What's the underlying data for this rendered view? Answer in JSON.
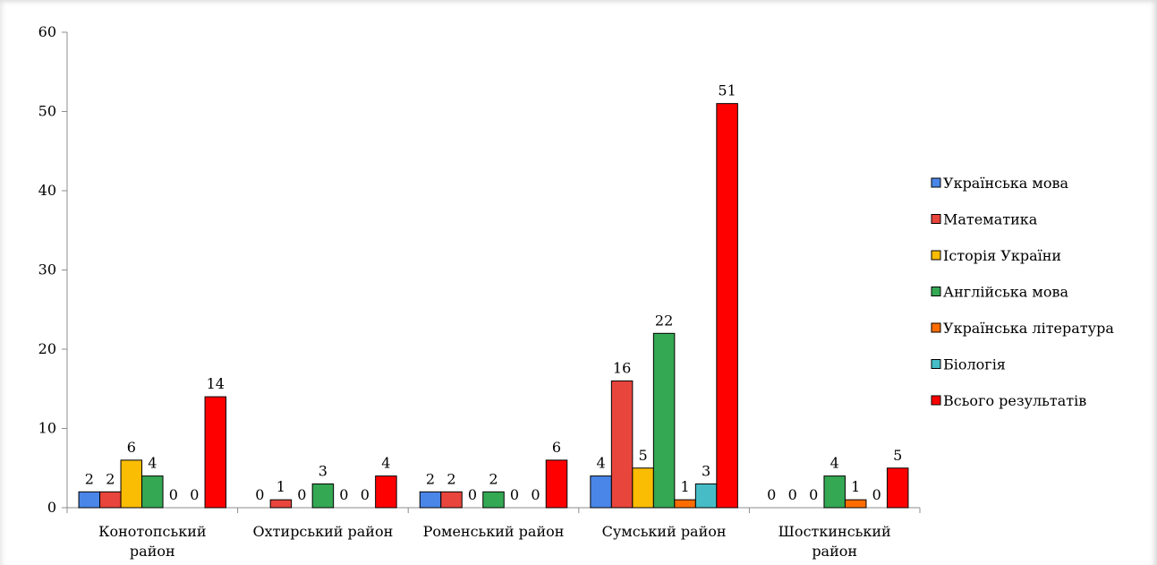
{
  "chart_data": {
    "type": "bar",
    "title": "",
    "xlabel": "",
    "ylabel": "",
    "ylim": [
      0,
      60
    ],
    "yticks": [
      "0",
      "10",
      "20",
      "30",
      "40",
      "50",
      "60"
    ],
    "grid": false,
    "legend_position": "right",
    "categories": [
      [
        "Конотопський",
        "район"
      ],
      [
        "Охтирський район"
      ],
      [
        "Роменський район"
      ],
      [
        "Сумський район"
      ],
      [
        "Шосткинський",
        "район"
      ]
    ],
    "series": [
      {
        "name": "Українська мова",
        "color": "#4a86e8",
        "values": [
          2,
          0,
          2,
          4,
          0
        ]
      },
      {
        "name": "Математика",
        "color": "#e8453c",
        "values": [
          2,
          1,
          2,
          16,
          0
        ]
      },
      {
        "name": "Історія України",
        "color": "#fbbc04",
        "values": [
          6,
          0,
          0,
          5,
          0
        ]
      },
      {
        "name": "Англійська мова",
        "color": "#34a853",
        "values": [
          4,
          3,
          2,
          22,
          4
        ]
      },
      {
        "name": "Українська література",
        "color": "#ff6d01",
        "values": [
          0,
          0,
          0,
          1,
          1
        ]
      },
      {
        "name": "Біологія",
        "color": "#46bdc6",
        "values": [
          0,
          0,
          0,
          3,
          0
        ]
      },
      {
        "name": "Всього результатів",
        "color": "#ff0000",
        "values": [
          14,
          4,
          6,
          51,
          5
        ]
      }
    ]
  }
}
